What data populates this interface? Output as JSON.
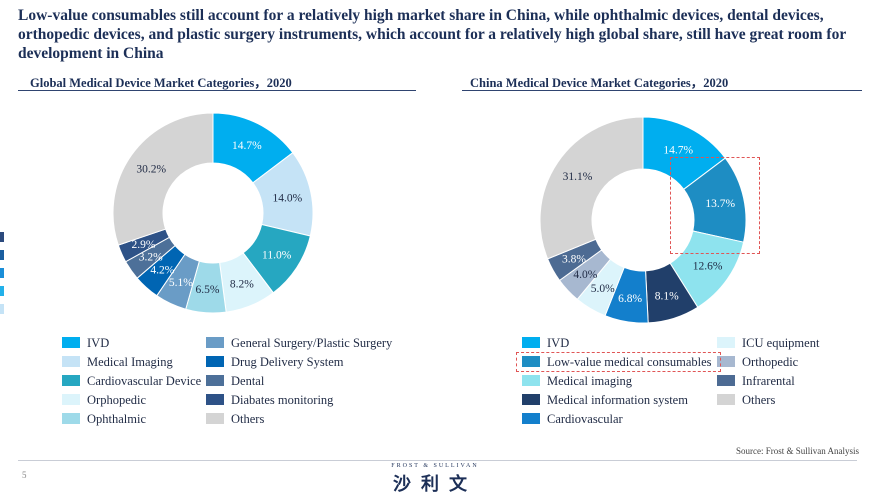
{
  "headline": "Low-value consumables still account for a relatively high market share in China, while ophthalmic devices, dental devices, orthopedic devices, and plastic surgery instruments, which account for a relatively high global share, still have great room for development in China",
  "source": "Source:  Frost & Sullivan Analysis",
  "page_number": "5",
  "logo": {
    "en": "FROST & SULLIVAN",
    "cn": "沙利文"
  },
  "colors": {
    "title": "#1c2f57",
    "highlight": "#e05555"
  },
  "edge_marks": [
    "#2c4a7d",
    "#1a5fa0",
    "#1a8ed8",
    "#22b1ea",
    "#c5e3f6"
  ],
  "chart_data": [
    {
      "type": "pie",
      "style": "donut",
      "title": "Global Medical Device Market Categories，2020",
      "slices": [
        {
          "name": "IVD",
          "value": 14.7,
          "label": "14.7%",
          "color": "#00aeef"
        },
        {
          "name": "Medical Imaging",
          "value": 14.0,
          "label": "14.0%",
          "color": "#c5e3f6"
        },
        {
          "name": "Cardiovascular Device",
          "value": 11.0,
          "label": "11.0%",
          "color": "#26a7c1"
        },
        {
          "name": "Orphopedic",
          "value": 8.2,
          "label": "8.2%",
          "color": "#dcf4fb"
        },
        {
          "name": "Ophthalmic",
          "value": 6.5,
          "label": "6.5%",
          "color": "#9edae9"
        },
        {
          "name": "General Surgery/Plastic Surgery",
          "value": 5.1,
          "label": "5.1%",
          "color": "#6a9cc6"
        },
        {
          "name": "Drug Delivery  System",
          "value": 4.2,
          "label": "4.2%",
          "color": "#0065b3"
        },
        {
          "name": "Dental",
          "value": 3.2,
          "label": "3.2%",
          "color": "#4d7099"
        },
        {
          "name": "Diabates monitoring",
          "value": 2.9,
          "label": "2.9%",
          "color": "#2e5287"
        },
        {
          "name": "Others",
          "value": 30.2,
          "label": "30.2%",
          "color": "#d4d4d4"
        }
      ],
      "legend_columns": [
        [
          "IVD",
          "Medical Imaging",
          "Cardiovascular Device",
          "Orphopedic",
          "Ophthalmic"
        ],
        [
          "General Surgery/Plastic Surgery",
          "Drug Delivery  System",
          "Dental",
          "Diabates monitoring",
          "Others"
        ]
      ]
    },
    {
      "type": "pie",
      "style": "donut",
      "title": "China Medical Device Market Categories，2020",
      "highlighted": "Low-value medical consumables",
      "slices": [
        {
          "name": "IVD",
          "value": 14.7,
          "label": "14.7%",
          "color": "#00aeef"
        },
        {
          "name": "Low-value medical consumables",
          "value": 13.7,
          "label": "13.7%",
          "color": "#1e8dc3"
        },
        {
          "name": "Medical imaging",
          "value": 12.6,
          "label": "12.6%",
          "color": "#8ee3ee"
        },
        {
          "name": "Medical information system",
          "value": 8.1,
          "label": "8.1%",
          "color": "#213f6a"
        },
        {
          "name": "Cardiovascular",
          "value": 6.8,
          "label": "6.8%",
          "color": "#137fcc"
        },
        {
          "name": "ICU equipment",
          "value": 5.0,
          "label": "5.0%",
          "color": "#dcf4fb"
        },
        {
          "name": "Orthopedic",
          "value": 4.0,
          "label": "4.0%",
          "color": "#a7b8d0"
        },
        {
          "name": "Infrarental",
          "value": 3.8,
          "label": "3.8%",
          "color": "#4d6b93"
        },
        {
          "name": "Others",
          "value": 31.1,
          "label": "31.1%",
          "color": "#d4d4d4"
        }
      ],
      "legend_columns": [
        [
          "IVD",
          "Low-value medical consumables",
          "Medical imaging",
          "Medical information system",
          "Cardiovascular"
        ],
        [
          "ICU equipment",
          "Orthopedic",
          "Infrarental",
          "Others"
        ]
      ]
    }
  ]
}
